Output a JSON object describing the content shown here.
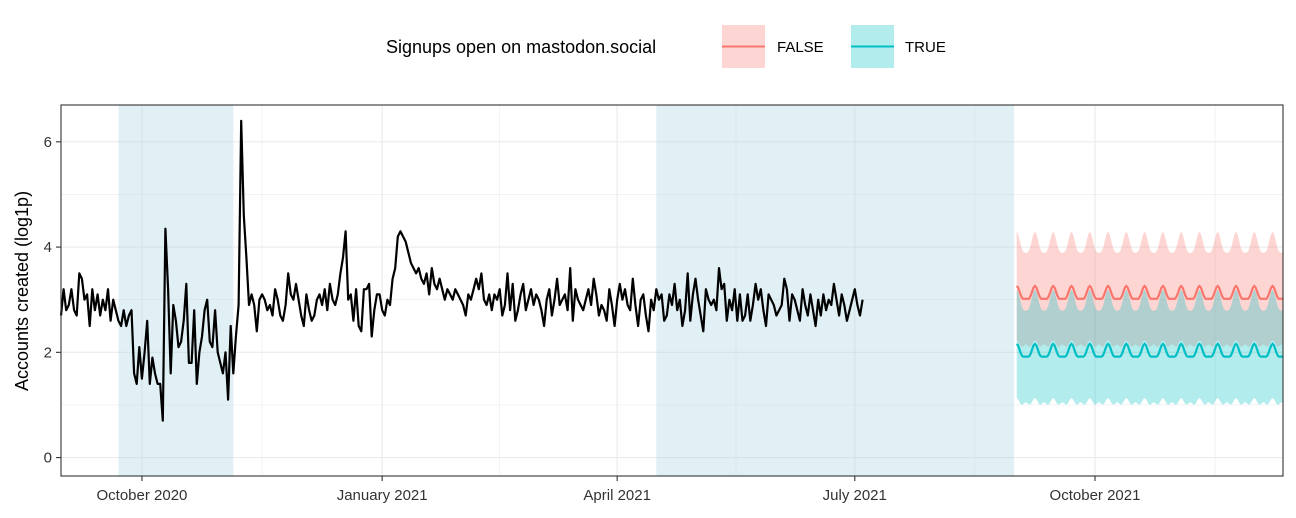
{
  "chart_data": {
    "type": "line",
    "ylabel": "Accounts created (log1p)",
    "xlim": [
      "2020-08-31",
      "2021-12-12"
    ],
    "ylim": [
      -0.35,
      6.7
    ],
    "x_ticks": [
      {
        "date": "2020-10-01",
        "label": "October 2020"
      },
      {
        "date": "2021-01-01",
        "label": "January 2021"
      },
      {
        "date": "2021-04-01",
        "label": "April 2021"
      },
      {
        "date": "2021-07-01",
        "label": "July 2021"
      },
      {
        "date": "2021-10-01",
        "label": "October 2021"
      }
    ],
    "y_ticks": [
      0,
      2,
      4,
      6
    ],
    "grid": true,
    "legend": {
      "title": "Signups open on mastodon.social",
      "position": "top",
      "entries": [
        {
          "label": "FALSE",
          "color": "#F8766D"
        },
        {
          "label": "TRUE",
          "color": "#00BFC4"
        }
      ]
    },
    "closed_periods": [
      {
        "start": "2020-09-22",
        "end": "2020-11-05"
      },
      {
        "start": "2021-04-16",
        "end": "2021-08-31"
      }
    ],
    "closed_period_color": "#add8e6",
    "observed": {
      "name": "observed",
      "color": "#000000",
      "start_date": "2020-08-31",
      "values": [
        2.7,
        3.2,
        2.8,
        2.9,
        3.2,
        2.8,
        2.7,
        3.5,
        3.4,
        3.0,
        3.1,
        2.5,
        3.2,
        2.8,
        3.1,
        2.7,
        3.0,
        2.8,
        3.2,
        2.6,
        3.0,
        2.8,
        2.6,
        2.5,
        2.8,
        2.5,
        2.7,
        2.8,
        1.6,
        1.4,
        2.1,
        1.5,
        2.0,
        2.6,
        1.4,
        1.9,
        1.6,
        1.4,
        1.4,
        0.7,
        4.35,
        3.2,
        1.6,
        2.9,
        2.6,
        2.1,
        2.2,
        2.6,
        3.3,
        1.8,
        1.8,
        2.8,
        1.4,
        2.0,
        2.3,
        2.8,
        3.0,
        2.2,
        2.1,
        2.8,
        2.0,
        1.8,
        1.6,
        2.0,
        1.1,
        2.5,
        1.6,
        2.3,
        2.9,
        6.4,
        4.6,
        3.8,
        2.9,
        3.1,
        2.9,
        2.4,
        3.0,
        3.1,
        3.0,
        2.8,
        2.9,
        2.7,
        3.2,
        3.0,
        2.7,
        2.6,
        2.9,
        3.5,
        3.1,
        3.0,
        3.3,
        3.0,
        2.7,
        2.5,
        3.1,
        2.8,
        2.6,
        2.7,
        3.0,
        3.1,
        2.9,
        3.2,
        2.8,
        3.3,
        3.0,
        2.9,
        3.1,
        3.5,
        3.8,
        4.3,
        3.0,
        3.1,
        2.6,
        3.2,
        2.5,
        2.4,
        3.2,
        3.2,
        3.3,
        2.3,
        2.8,
        3.1,
        3.1,
        2.8,
        2.7,
        3.0,
        2.9,
        3.4,
        3.6,
        4.2,
        4.3,
        4.2,
        4.1,
        3.9,
        3.7,
        3.6,
        3.5,
        3.6,
        3.4,
        3.3,
        3.5,
        3.1,
        3.6,
        3.3,
        3.2,
        3.4,
        3.2,
        3.0,
        3.2,
        3.1,
        3.0,
        3.2,
        3.1,
        3.0,
        2.9,
        2.7,
        3.1,
        3.0,
        3.2,
        3.4,
        3.2,
        3.5,
        3.0,
        2.9,
        3.1,
        2.8,
        3.1,
        3.0,
        3.2,
        2.7,
        2.9,
        3.5,
        2.8,
        3.3,
        2.6,
        2.8,
        3.1,
        3.3,
        2.8,
        3.0,
        3.2,
        2.9,
        3.1,
        3.0,
        2.8,
        2.5,
        3.0,
        3.2,
        2.7,
        3.0,
        3.4,
        2.9,
        3.0,
        3.1,
        2.8,
        3.6,
        2.6,
        3.2,
        3.0,
        2.9,
        2.8,
        3.0,
        3.2,
        2.9,
        3.4,
        3.1,
        2.7,
        2.9,
        2.8,
        2.6,
        3.2,
        2.9,
        2.5,
        3.0,
        3.3,
        3.0,
        3.2,
        2.9,
        2.8,
        3.4,
        2.9,
        2.5,
        3.0,
        3.1,
        2.7,
        2.4,
        3.0,
        2.8,
        3.2,
        3.0,
        3.1,
        2.6,
        2.7,
        3.1,
        2.9,
        3.3,
        2.8,
        3.0,
        2.5,
        2.8,
        3.5,
        2.6,
        3.1,
        3.4,
        3.0,
        2.7,
        2.4,
        3.2,
        3.0,
        2.9,
        3.0,
        2.8,
        3.6,
        3.2,
        3.3,
        2.6,
        3.0,
        2.8,
        3.2,
        2.6,
        3.1,
        2.6,
        2.7,
        3.1,
        2.6,
        2.9,
        3.3,
        3.0,
        3.2,
        2.8,
        2.5,
        3.1,
        3.0,
        2.9,
        2.7,
        2.8,
        2.9,
        3.4,
        3.2,
        2.6,
        3.1,
        3.0,
        2.8,
        2.6,
        3.2,
        2.9,
        2.7,
        3.1,
        2.8,
        2.5,
        3.0,
        2.7,
        3.1,
        2.8,
        3.0,
        2.9,
        3.3,
        3.0,
        2.7,
        3.1,
        2.9,
        2.6,
        2.8,
        3.0,
        3.2,
        2.9,
        2.7,
        3.0
      ],
      "recorded_note_excluded": true
    },
    "forecast_false": {
      "name": "FALSE",
      "color": "#F8766D",
      "start_date": "2021-09-01",
      "end_date": "2021-12-12",
      "center": 3.1,
      "amplitude": 0.12,
      "ci_half_width": 0.95,
      "period_days": 7
    },
    "forecast_true": {
      "name": "TRUE",
      "color": "#00BFC4",
      "start_date": "2021-09-01",
      "end_date": "2021-12-12",
      "center": 2.0,
      "amplitude": 0.12,
      "ci_half_width": 0.95,
      "period_days": 7
    }
  }
}
